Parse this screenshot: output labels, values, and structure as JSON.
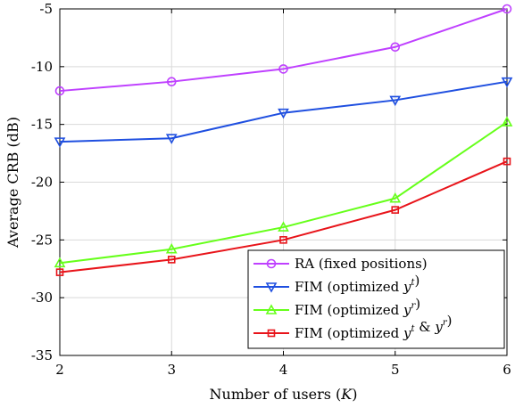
{
  "chart_data": {
    "type": "line",
    "xlabel": "Number of users (K)",
    "ylabel": "Average CRB (dB)",
    "x": [
      2,
      3,
      4,
      5,
      6
    ],
    "xticks": [
      "2",
      "3",
      "4",
      "5",
      "6"
    ],
    "yticks": [
      "-5",
      "-10",
      "-15",
      "-20",
      "-25",
      "-30",
      "-35"
    ],
    "xlim": [
      2,
      6
    ],
    "ylim": [
      -35,
      -5
    ],
    "grid": true,
    "legend_position": "bottom-right",
    "series": [
      {
        "name": "RA (fixed positions)",
        "values": [
          -12.1,
          -11.3,
          -10.2,
          -8.3,
          -5.0
        ],
        "color": "#bf40ff",
        "marker": "circle"
      },
      {
        "name": "FIM (optimized y^t)",
        "values": [
          -16.5,
          -16.2,
          -14.0,
          -12.9,
          -11.3
        ],
        "color": "#1f4fe0",
        "marker": "triangle-down"
      },
      {
        "name": "FIM (optimized y^r)",
        "values": [
          -27.0,
          -25.8,
          -23.9,
          -21.4,
          -14.8
        ],
        "color": "#66ff1a",
        "marker": "triangle-up"
      },
      {
        "name": "FIM (optimized y^t & y^r)",
        "values": [
          -27.8,
          -26.7,
          -25.0,
          -22.4,
          -18.2
        ],
        "color": "#e8141a",
        "marker": "square"
      }
    ]
  }
}
